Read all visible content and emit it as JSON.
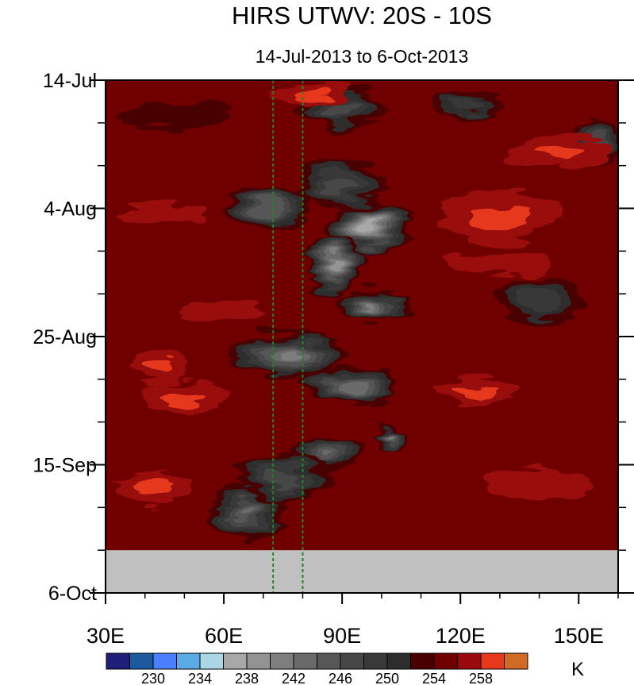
{
  "chart_data": {
    "type": "heatmap",
    "title": "HIRS UTWV: 20S - 10S",
    "subtitle": "14-Jul-2013 to 6-Oct-2013",
    "x_range": [
      30,
      160
    ],
    "x_ticks": [
      {
        "value": 30,
        "label": "30E"
      },
      {
        "value": 60,
        "label": "60E"
      },
      {
        "value": 90,
        "label": "90E"
      },
      {
        "value": 120,
        "label": "120E"
      },
      {
        "value": 150,
        "label": "150E"
      }
    ],
    "y_range_days": [
      0,
      84
    ],
    "y_ticks": [
      {
        "day": 0,
        "label": "14-Jul"
      },
      {
        "day": 21,
        "label": "4-Aug"
      },
      {
        "day": 42,
        "label": "25-Aug"
      },
      {
        "day": 63,
        "label": "15-Sep"
      },
      {
        "day": 84,
        "label": "6-Oct"
      }
    ],
    "missing_after_day": 77,
    "reference_lines_lon": [
      72.5,
      80
    ],
    "colorbar": {
      "unit": "K",
      "levels": [
        228,
        230,
        232,
        234,
        236,
        238,
        240,
        242,
        244,
        246,
        248,
        250,
        252,
        254,
        256,
        258
      ],
      "labels": [
        "230",
        "234",
        "238",
        "242",
        "246",
        "250",
        "254",
        "258"
      ],
      "colors": [
        "#1f1f7a",
        "#1c5aa0",
        "#4a80ff",
        "#5aaae6",
        "#aad6e6",
        "#a8a8a8",
        "#939393",
        "#7e7e7e",
        "#6a6a6a",
        "#575757",
        "#474747",
        "#393939",
        "#2d2d2d",
        "#4a0000",
        "#700000",
        "#9a0a0a",
        "#e6381a",
        "#d06a24"
      ]
    },
    "features": [
      {
        "lon": 97,
        "day": 24,
        "value": 236,
        "rx": 10,
        "ry": 4.5
      },
      {
        "lon": 88,
        "day": 30,
        "value": 238,
        "rx": 7,
        "ry": 5
      },
      {
        "lon": 72,
        "day": 21,
        "value": 244,
        "rx": 10,
        "ry": 4
      },
      {
        "lon": 98,
        "day": 37,
        "value": 241,
        "rx": 10,
        "ry": 2.5
      },
      {
        "lon": 76,
        "day": 45,
        "value": 241,
        "rx": 14,
        "ry": 4
      },
      {
        "lon": 92,
        "day": 50,
        "value": 242,
        "rx": 12,
        "ry": 3
      },
      {
        "lon": 102,
        "day": 59,
        "value": 241,
        "rx": 5,
        "ry": 2
      },
      {
        "lon": 85,
        "day": 61,
        "value": 243,
        "rx": 10,
        "ry": 3
      },
      {
        "lon": 66,
        "day": 71,
        "value": 243,
        "rx": 10,
        "ry": 4
      },
      {
        "lon": 90,
        "day": 5,
        "value": 246,
        "rx": 12,
        "ry": 3
      },
      {
        "lon": 90,
        "day": 17,
        "value": 246,
        "rx": 12,
        "ry": 4
      },
      {
        "lon": 75,
        "day": 65,
        "value": 246,
        "rx": 12,
        "ry": 4
      },
      {
        "lon": 155,
        "day": 10,
        "value": 246,
        "rx": 6,
        "ry": 4
      },
      {
        "lon": 140,
        "day": 36,
        "value": 248,
        "rx": 12,
        "ry": 4
      },
      {
        "lon": 122,
        "day": 4,
        "value": 248,
        "rx": 10,
        "ry": 2
      },
      {
        "lon": 47,
        "day": 6,
        "value": 252,
        "rx": 14,
        "ry": 2
      },
      {
        "lon": 130,
        "day": 22,
        "value": 259,
        "rx": 16,
        "ry": 4
      },
      {
        "lon": 145,
        "day": 12,
        "value": 259,
        "rx": 13,
        "ry": 2.5
      },
      {
        "lon": 82,
        "day": 2,
        "value": 258,
        "rx": 10,
        "ry": 2
      },
      {
        "lon": 43,
        "day": 47,
        "value": 259,
        "rx": 7,
        "ry": 2.5
      },
      {
        "lon": 50,
        "day": 52,
        "value": 258,
        "rx": 10,
        "ry": 3
      },
      {
        "lon": 42,
        "day": 67,
        "value": 259,
        "rx": 9,
        "ry": 2.5
      },
      {
        "lon": 45,
        "day": 22,
        "value": 257,
        "rx": 12,
        "ry": 2
      },
      {
        "lon": 60,
        "day": 38,
        "value": 257,
        "rx": 10,
        "ry": 2
      },
      {
        "lon": 140,
        "day": 66,
        "value": 257,
        "rx": 14,
        "ry": 3
      },
      {
        "lon": 125,
        "day": 51,
        "value": 258,
        "rx": 10,
        "ry": 2
      },
      {
        "lon": 130,
        "day": 30,
        "value": 257,
        "rx": 14,
        "ry": 2
      }
    ],
    "background_value": 255
  }
}
